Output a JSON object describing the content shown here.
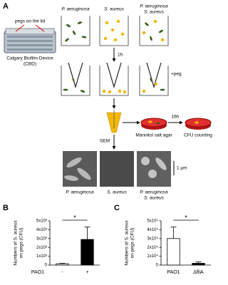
{
  "diagram": {
    "panel_label": "A",
    "pegs_label": "pegs on the lid",
    "device_label": [
      "Calgary Biofilm Device",
      "(CBD)"
    ],
    "wells": [
      [
        "P. aeruginosa"
      ],
      [
        "S. aureus"
      ],
      [
        "P. aeruginosa",
        "S. aureus"
      ]
    ],
    "step_1h": "1h",
    "step_peg": "+peg",
    "step_16h": "16h",
    "agar_label": "Mannitol salt agar",
    "count_label": "CFU counting",
    "sem_label": "SEM",
    "scale_bar": "1 μm",
    "sem_labels": [
      [
        "P. aeruginosa"
      ],
      [
        "S. aureus"
      ],
      [
        "P. aeruginosa",
        "S. aureus"
      ]
    ]
  },
  "chart_data": [
    {
      "type": "bar",
      "panel_label": "B",
      "ylabel": [
        "Numbers of S. aureus",
        "on pegs (CFU)"
      ],
      "xlabel": "PAO1",
      "categories": [
        "-",
        "+"
      ],
      "values": [
        150,
        2900
      ],
      "errors": [
        50,
        1400
      ],
      "colors": [
        "#ffffff",
        "#000000"
      ],
      "ylim": [
        0,
        5000
      ],
      "yticks": [
        0,
        {
          "value": 1000,
          "label": "1x10³"
        },
        {
          "value": 2000,
          "label": "2x10³"
        },
        {
          "value": 3000,
          "label": "3x10³"
        },
        {
          "value": 4000,
          "label": "4x10³"
        },
        {
          "value": 5000,
          "label": "5x10³"
        }
      ],
      "annotation": "*"
    },
    {
      "type": "bar",
      "panel_label": "C",
      "ylabel": [
        "Numbers of S. aureus",
        "on pegs (CFU)"
      ],
      "categories": [
        "PAO1",
        "ΔfliA"
      ],
      "values": [
        30000,
        2000
      ],
      "errors": [
        13000,
        1500
      ],
      "colors": [
        "#ffffff",
        "#000000"
      ],
      "ylim": [
        0,
        50000
      ],
      "yticks": [
        0,
        {
          "value": 10000,
          "label": "1x10⁴"
        },
        {
          "value": 20000,
          "label": "2x10⁴"
        },
        {
          "value": 30000,
          "label": "3x10⁴"
        },
        {
          "value": 40000,
          "label": "4x10⁴"
        },
        {
          "value": 50000,
          "label": "5x10⁴"
        }
      ],
      "annotation": "*"
    }
  ]
}
